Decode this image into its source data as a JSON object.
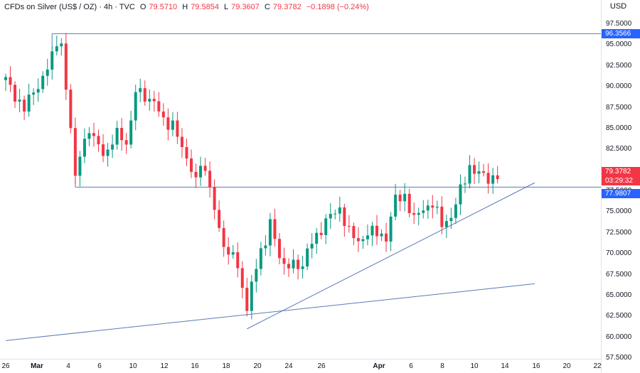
{
  "header": {
    "symbol": "CFDs on Silver (US$ / OZ) · 4h · TVC",
    "open_key": "O",
    "open": "79.5710",
    "high_key": "H",
    "high": "79.5854",
    "low_key": "L",
    "low": "79.3607",
    "close_key": "C",
    "close": "79.3782",
    "change": "−0.1898 (−0.24%)"
  },
  "price_axis": {
    "currency": "USD",
    "ticks": [
      "97.5000",
      "95.0000",
      "92.5000",
      "90.0000",
      "87.5000",
      "85.0000",
      "82.5000",
      "80.0000",
      "77.5000",
      "75.0000",
      "72.5000",
      "70.0000",
      "67.5000",
      "65.0000",
      "62.5000",
      "60.0000",
      "57.5000"
    ],
    "tags": {
      "resistance": "96.3566",
      "price": "79.3782",
      "countdown": "03:29:32",
      "support": "77.9807"
    }
  },
  "time_axis": {
    "ticks": [
      "26",
      "Mar",
      "4",
      "6",
      "10",
      "12",
      "16",
      "18",
      "20",
      "24",
      "26",
      "Apr",
      "6",
      "8",
      "10",
      "14",
      "16",
      "20",
      "22"
    ]
  },
  "colors": {
    "up": "#089981",
    "down": "#f23645",
    "lines": "#5b7bb6",
    "resistance_tag": "#2962ff",
    "price_tag": "#f23645",
    "support_tag": "#2962ff"
  },
  "chart_data": {
    "type": "candlestick",
    "timeframe": "4h",
    "ylim": [
      57.5,
      98.5
    ],
    "horizontal_levels": [
      96.3566,
      77.9807
    ],
    "trendlines": [
      {
        "from": [
          "Feb 24",
          59.6
        ],
        "to": [
          "Apr 22",
          66.4
        ]
      },
      {
        "from": [
          "Mar 22",
          61.0
        ],
        "to": [
          "Apr 22",
          78.5
        ]
      }
    ],
    "close_path": [
      [
        "Feb 24",
        90.8
      ],
      [
        "Feb 25",
        89.0
      ],
      [
        "Feb 26",
        87.3
      ],
      [
        "Feb 27",
        89.5
      ],
      [
        "Feb 28",
        91.0
      ],
      [
        "Mar 1",
        93.5
      ],
      [
        "Mar 1.5",
        95.5
      ],
      [
        "Mar 2",
        95.3
      ],
      [
        "Mar 2.5",
        89.5
      ],
      [
        "Mar 3",
        85.0
      ],
      [
        "Mar 3.5",
        78.8
      ],
      [
        "Mar 4",
        82.5
      ],
      [
        "Mar 5",
        84.5
      ],
      [
        "Mar 6",
        83.0
      ],
      [
        "Mar 7",
        82.0
      ],
      [
        "Mar 8",
        84.5
      ],
      [
        "Mar 9",
        83.5
      ],
      [
        "Mar 9.5",
        85.5
      ],
      [
        "Mar 10",
        89.5
      ],
      [
        "Mar 11",
        89.0
      ],
      [
        "Mar 12",
        88.0
      ],
      [
        "Mar 13",
        86.0
      ],
      [
        "Mar 14",
        85.5
      ],
      [
        "Mar 15",
        82.5
      ],
      [
        "Mar 16",
        80.5
      ],
      [
        "Mar 16.5",
        78.5
      ],
      [
        "Mar 17",
        80.7
      ],
      [
        "Mar 17.5",
        79.5
      ],
      [
        "Mar 18",
        78.5
      ],
      [
        "Mar 18.5",
        75.5
      ],
      [
        "Mar 19",
        72.5
      ],
      [
        "Mar 20",
        69.5
      ],
      [
        "Mar 20.5",
        71.0
      ],
      [
        "Mar 21",
        68.0
      ],
      [
        "Mar 22",
        63.2
      ],
      [
        "Mar 22.5",
        66.5
      ],
      [
        "Mar 23",
        69.0
      ],
      [
        "Mar 24",
        71.0
      ],
      [
        "Mar 24.5",
        74.0
      ],
      [
        "Mar 25",
        72.0
      ],
      [
        "Mar 26",
        68.0
      ],
      [
        "Mar 27",
        69.0
      ],
      [
        "Mar 28",
        68.5
      ],
      [
        "Mar 29",
        71.5
      ],
      [
        "Mar 30",
        73.0
      ],
      [
        "Mar 31",
        74.5
      ],
      [
        "Apr 1",
        75.5
      ],
      [
        "Apr 2",
        72.5
      ],
      [
        "Apr 3",
        71.5
      ],
      [
        "Apr 4",
        72.5
      ],
      [
        "Apr 5",
        72.5
      ],
      [
        "Apr 6",
        72.0
      ],
      [
        "Apr 7",
        76.5
      ],
      [
        "Apr 8",
        77.0
      ],
      [
        "Apr 9",
        74.0
      ],
      [
        "Apr 10",
        75.5
      ],
      [
        "Apr 11",
        76.0
      ],
      [
        "Apr 12",
        73.5
      ],
      [
        "Apr 13",
        74.5
      ],
      [
        "Apr 14",
        77.5
      ],
      [
        "Apr 15",
        80.5
      ],
      [
        "Apr 16",
        79.5
      ],
      [
        "Apr 17",
        79.0
      ],
      [
        "Apr 18",
        79.4
      ]
    ]
  }
}
